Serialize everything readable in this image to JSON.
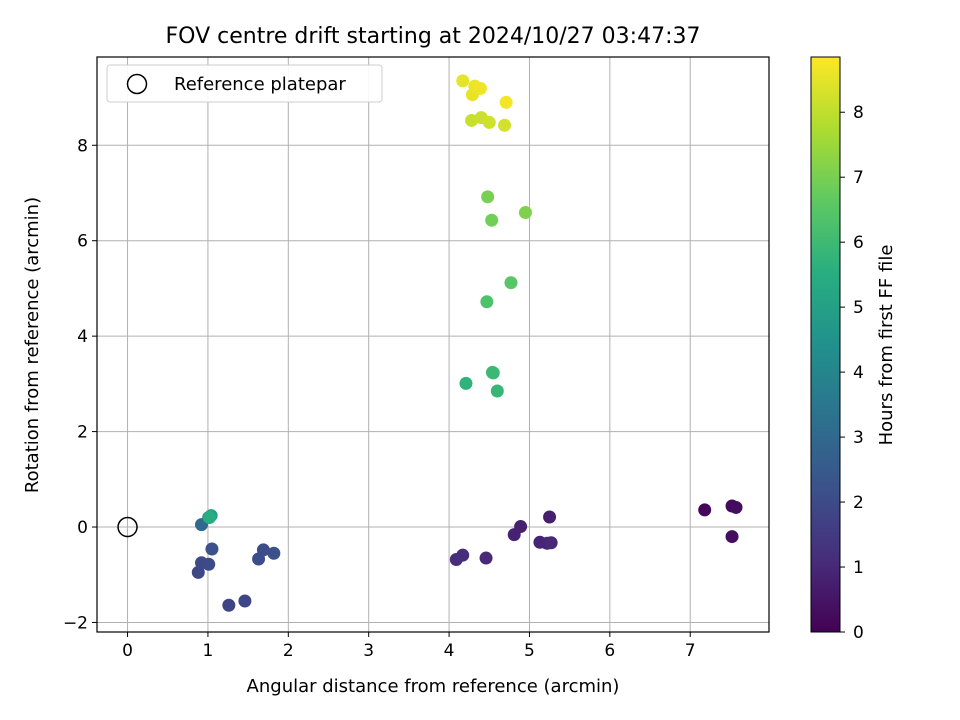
{
  "chart_data": {
    "type": "scatter",
    "title": "FOV centre drift starting at 2024/10/27 03:47:37",
    "xlabel": "Angular distance from reference (arcmin)",
    "ylabel": "Rotation from reference (arcmin)",
    "xlim": [
      -0.38,
      7.98
    ],
    "ylim": [
      -2.2,
      9.85
    ],
    "xticks": [
      0,
      1,
      2,
      3,
      4,
      5,
      6,
      7
    ],
    "yticks": [
      -2,
      0,
      2,
      4,
      6,
      8
    ],
    "grid": true,
    "legend": {
      "position": "top-left",
      "entries": [
        "Reference platepar"
      ]
    },
    "reference_point": {
      "x": 0,
      "y": 0
    },
    "colorbar": {
      "label": "Hours from first FF file",
      "colormap": "viridis",
      "range": [
        0,
        8.85
      ],
      "ticks": [
        0,
        1,
        2,
        3,
        4,
        5,
        6,
        7,
        8
      ]
    },
    "points": [
      {
        "x": 7.18,
        "y": 0.36,
        "h": 0.15
      },
      {
        "x": 7.52,
        "y": 0.44,
        "h": 0.25
      },
      {
        "x": 7.57,
        "y": 0.41,
        "h": 0.3
      },
      {
        "x": 7.52,
        "y": -0.2,
        "h": 0.35
      },
      {
        "x": 5.25,
        "y": 0.21,
        "h": 0.75
      },
      {
        "x": 4.89,
        "y": 0.01,
        "h": 0.8
      },
      {
        "x": 4.81,
        "y": -0.16,
        "h": 0.85
      },
      {
        "x": 5.13,
        "y": -0.32,
        "h": 0.9
      },
      {
        "x": 5.22,
        "y": -0.34,
        "h": 0.95
      },
      {
        "x": 5.27,
        "y": -0.33,
        "h": 1.0
      },
      {
        "x": 4.46,
        "y": -0.65,
        "h": 1.05
      },
      {
        "x": 4.17,
        "y": -0.59,
        "h": 1.1
      },
      {
        "x": 4.09,
        "y": -0.68,
        "h": 1.15
      },
      {
        "x": 1.26,
        "y": -1.64,
        "h": 1.8
      },
      {
        "x": 1.46,
        "y": -1.55,
        "h": 1.85
      },
      {
        "x": 0.88,
        "y": -0.95,
        "h": 1.9
      },
      {
        "x": 0.92,
        "y": -0.75,
        "h": 1.95
      },
      {
        "x": 1.01,
        "y": -0.78,
        "h": 2.0
      },
      {
        "x": 1.63,
        "y": -0.67,
        "h": 2.05
      },
      {
        "x": 1.69,
        "y": -0.48,
        "h": 2.1
      },
      {
        "x": 1.82,
        "y": -0.55,
        "h": 2.15
      },
      {
        "x": 1.05,
        "y": -0.46,
        "h": 2.2
      },
      {
        "x": 0.92,
        "y": 0.05,
        "h": 3.0
      },
      {
        "x": 1.01,
        "y": 0.2,
        "h": 4.0
      },
      {
        "x": 1.04,
        "y": 0.24,
        "h": 5.0
      },
      {
        "x": 1.02,
        "y": 0.2,
        "h": 5.5
      },
      {
        "x": 4.21,
        "y": 3.01,
        "h": 5.7
      },
      {
        "x": 4.6,
        "y": 2.85,
        "h": 5.85
      },
      {
        "x": 4.54,
        "y": 3.24,
        "h": 5.9
      },
      {
        "x": 4.55,
        "y": 3.23,
        "h": 5.95
      },
      {
        "x": 4.47,
        "y": 4.72,
        "h": 6.3
      },
      {
        "x": 4.77,
        "y": 5.12,
        "h": 6.5
      },
      {
        "x": 4.53,
        "y": 6.43,
        "h": 6.9
      },
      {
        "x": 4.48,
        "y": 6.92,
        "h": 7.0
      },
      {
        "x": 4.95,
        "y": 6.59,
        "h": 7.1
      },
      {
        "x": 4.28,
        "y": 8.52,
        "h": 8.1
      },
      {
        "x": 4.4,
        "y": 8.58,
        "h": 8.15
      },
      {
        "x": 4.5,
        "y": 8.48,
        "h": 8.2
      },
      {
        "x": 4.69,
        "y": 8.42,
        "h": 8.25
      },
      {
        "x": 4.17,
        "y": 9.35,
        "h": 8.5
      },
      {
        "x": 4.29,
        "y": 9.06,
        "h": 8.55
      },
      {
        "x": 4.32,
        "y": 9.24,
        "h": 8.6
      },
      {
        "x": 4.39,
        "y": 9.19,
        "h": 8.65
      },
      {
        "x": 4.71,
        "y": 8.9,
        "h": 8.7
      }
    ]
  }
}
